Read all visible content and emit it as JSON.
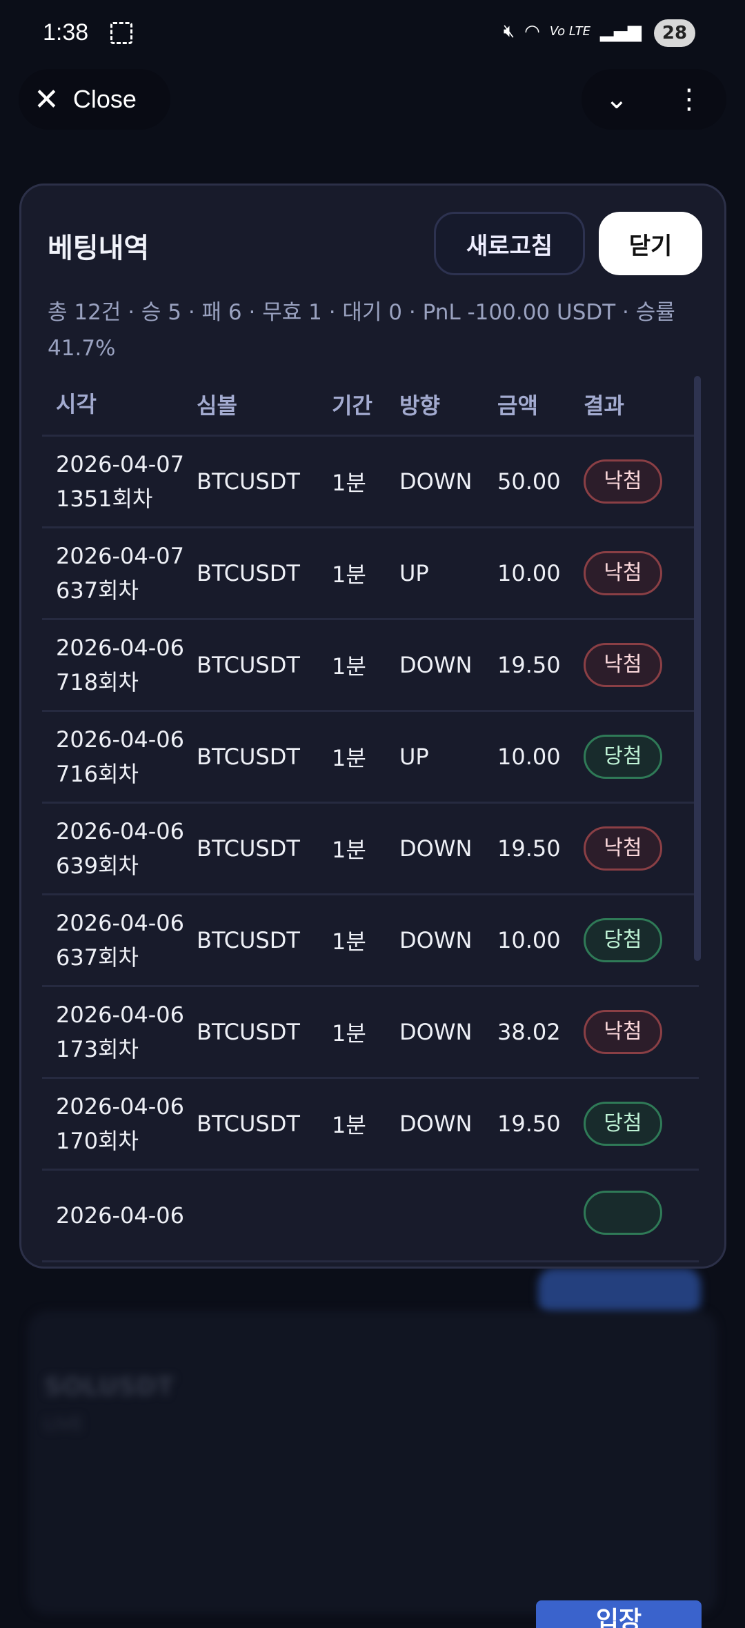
{
  "status_bar": {
    "time": "1:38",
    "network": "Vo LTE",
    "battery": "28"
  },
  "browser": {
    "close_label": "Close",
    "icons": [
      "close-icon",
      "chevron-down-icon",
      "more-vert-icon"
    ]
  },
  "background": {
    "symbol": "SOLUSDT",
    "status": "LIVE",
    "enter_button": "입장"
  },
  "modal": {
    "title": "베팅내역",
    "refresh_label": "새로고침",
    "close_label": "닫기",
    "summary": "총 12건 · 승 5 · 패 6 · 무효 1 · 대기 0 · PnL -100.00 USDT · 승률 41.7%",
    "columns": [
      "시각",
      "심볼",
      "기간",
      "방향",
      "금액",
      "결과"
    ],
    "colors": {
      "loss": "#8a3f45",
      "win": "#2f7a57"
    },
    "rows": [
      {
        "date": "2026-04-07",
        "round": "1351회차",
        "symbol": "BTCUSDT",
        "period": "1분",
        "direction": "DOWN",
        "amount": "50.00",
        "result": "낙첨",
        "type": "loss"
      },
      {
        "date": "2026-04-07",
        "round": "637회차",
        "symbol": "BTCUSDT",
        "period": "1분",
        "direction": "UP",
        "amount": "10.00",
        "result": "낙첨",
        "type": "loss"
      },
      {
        "date": "2026-04-06",
        "round": "718회차",
        "symbol": "BTCUSDT",
        "period": "1분",
        "direction": "DOWN",
        "amount": "19.50",
        "result": "낙첨",
        "type": "loss"
      },
      {
        "date": "2026-04-06",
        "round": "716회차",
        "symbol": "BTCUSDT",
        "period": "1분",
        "direction": "UP",
        "amount": "10.00",
        "result": "당첨",
        "type": "win"
      },
      {
        "date": "2026-04-06",
        "round": "639회차",
        "symbol": "BTCUSDT",
        "period": "1분",
        "direction": "DOWN",
        "amount": "19.50",
        "result": "낙첨",
        "type": "loss"
      },
      {
        "date": "2026-04-06",
        "round": "637회차",
        "symbol": "BTCUSDT",
        "period": "1분",
        "direction": "DOWN",
        "amount": "10.00",
        "result": "당첨",
        "type": "win"
      },
      {
        "date": "2026-04-06",
        "round": "173회차",
        "symbol": "BTCUSDT",
        "period": "1분",
        "direction": "DOWN",
        "amount": "38.02",
        "result": "낙첨",
        "type": "loss"
      },
      {
        "date": "2026-04-06",
        "round": "170회차",
        "symbol": "BTCUSDT",
        "period": "1분",
        "direction": "DOWN",
        "amount": "19.50",
        "result": "당첨",
        "type": "win"
      },
      {
        "date": "2026-04-06",
        "type": "win"
      }
    ]
  }
}
